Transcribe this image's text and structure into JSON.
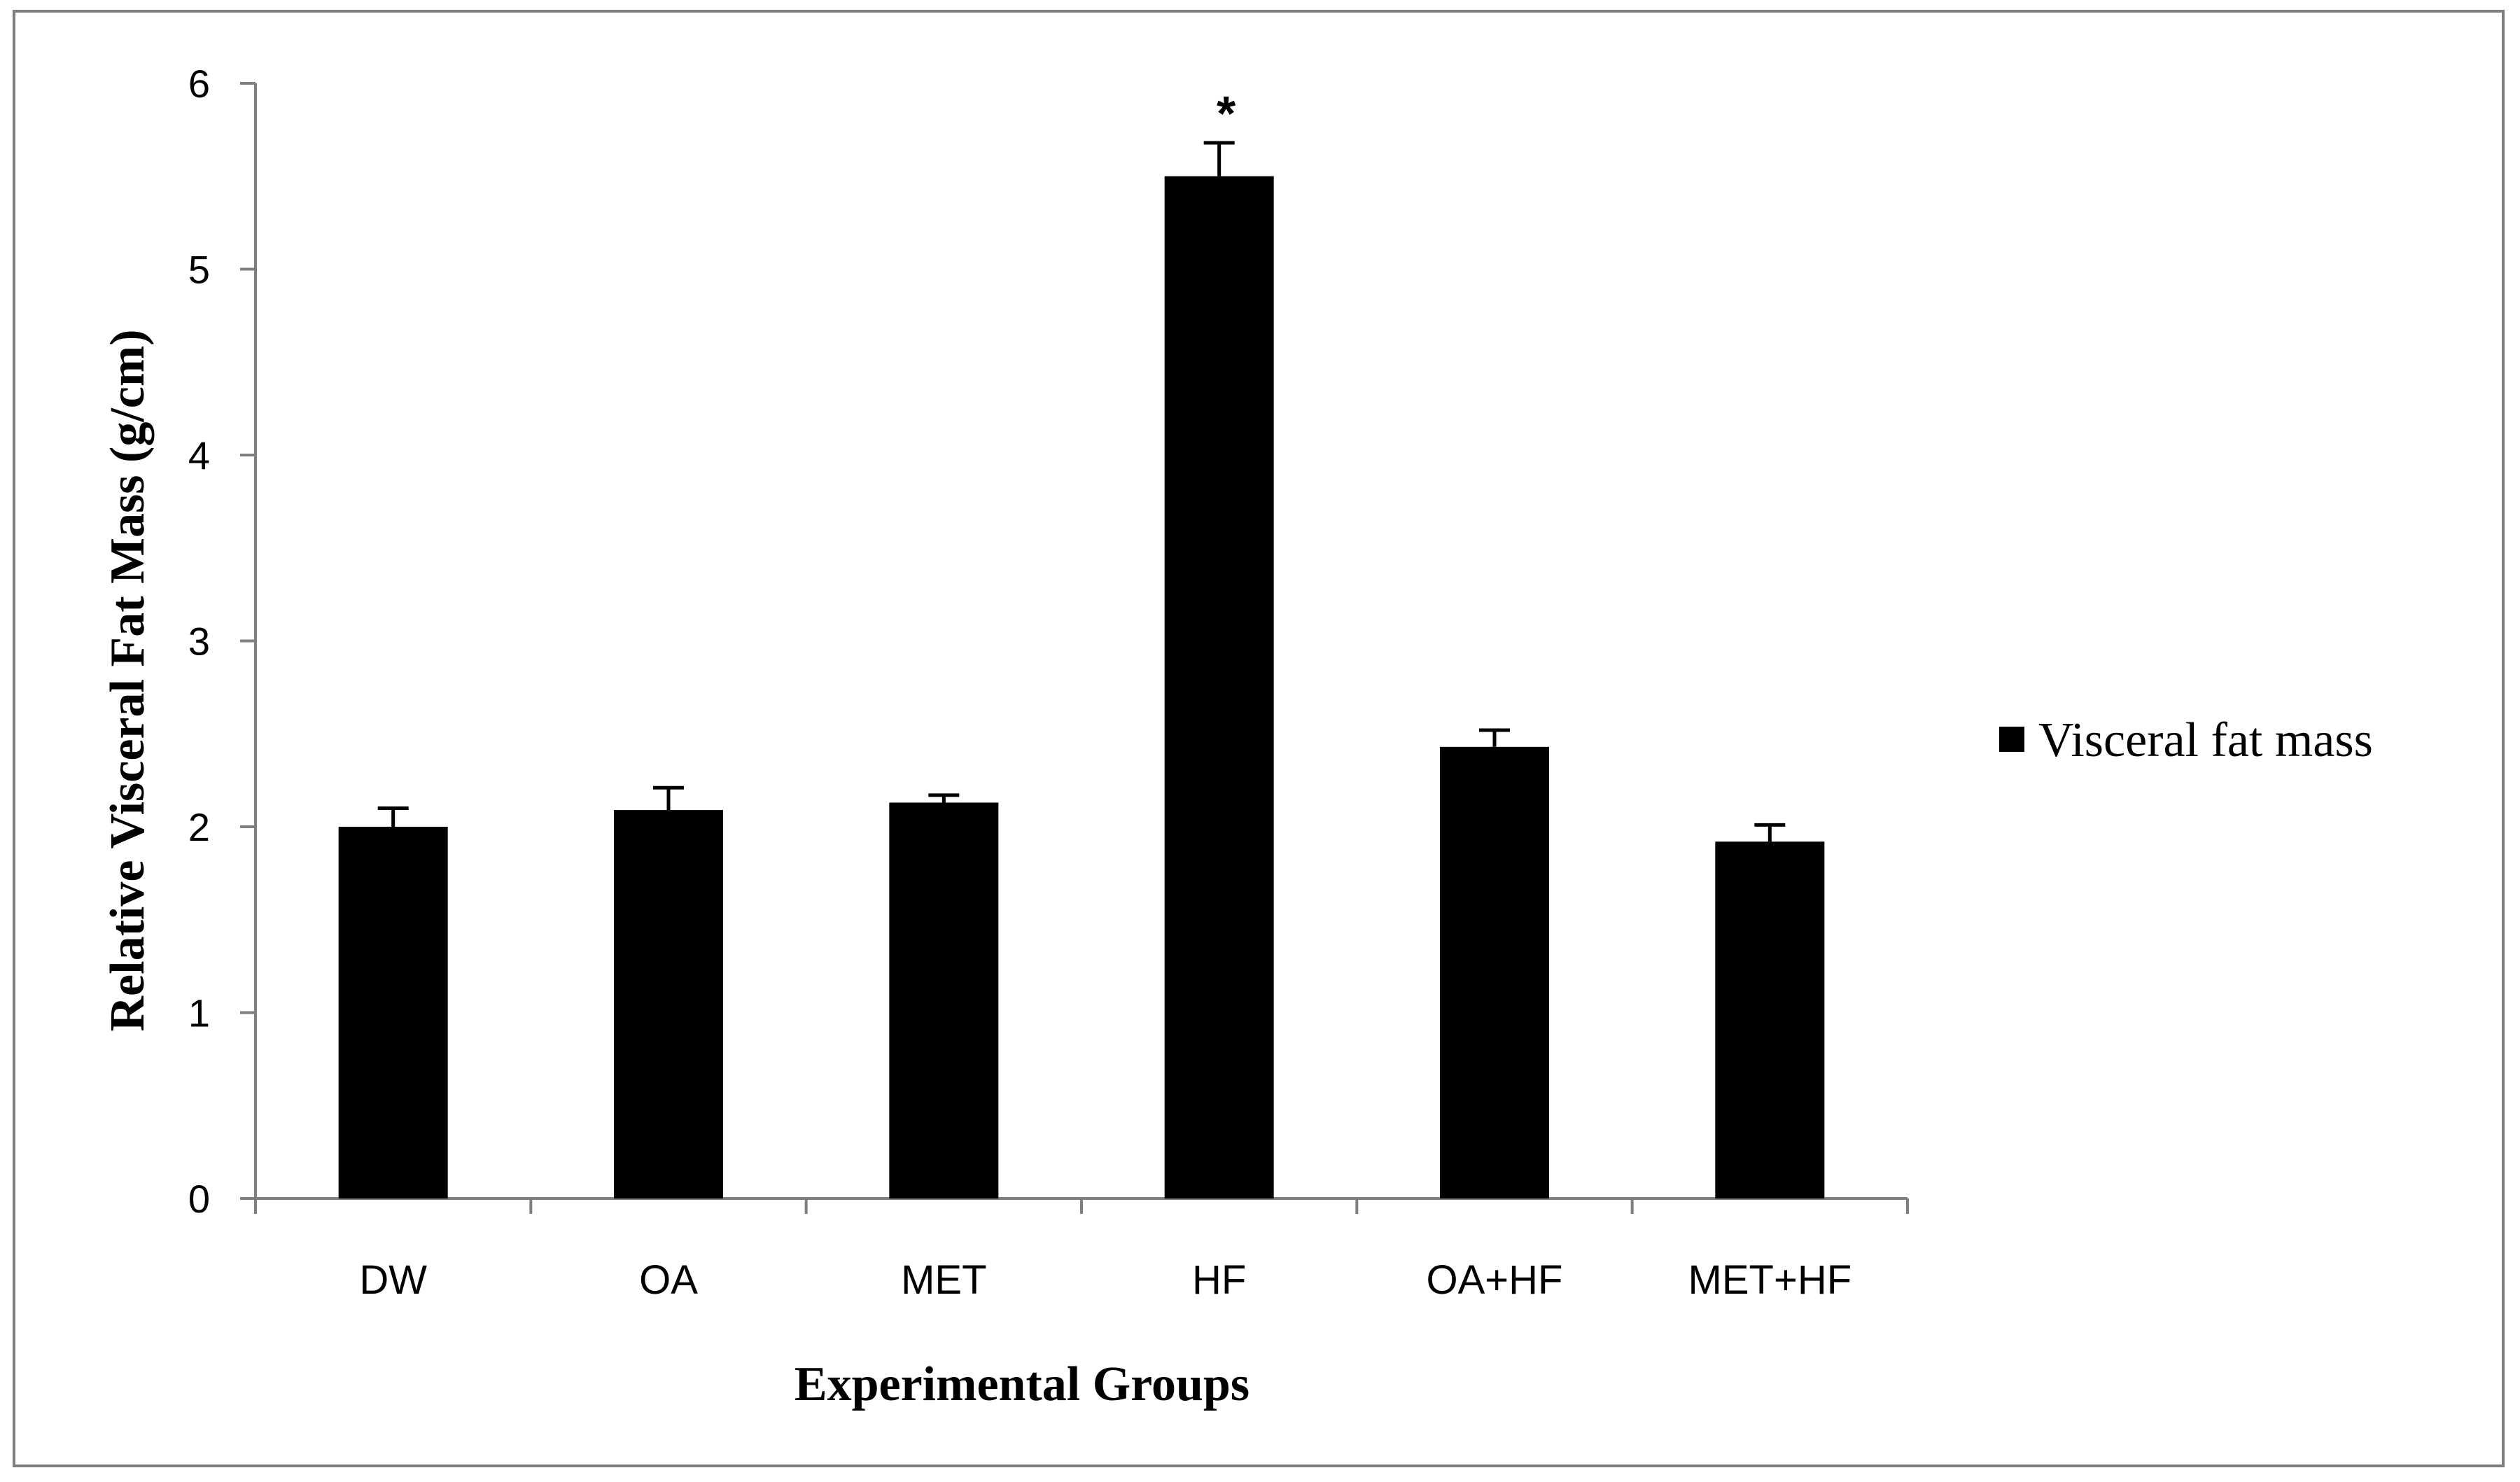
{
  "chart_data": {
    "type": "bar",
    "categories": [
      "DW",
      "OA",
      "MET",
      "HF",
      "OA+HF",
      "MET+HF"
    ],
    "series": [
      {
        "name": "Visceral fat mass",
        "values": [
          2.0,
          2.09,
          2.13,
          5.5,
          2.43,
          1.92
        ],
        "errors": [
          0.1,
          0.12,
          0.04,
          0.18,
          0.09,
          0.09
        ]
      }
    ],
    "xlabel": "Experimental Groups",
    "ylabel": "Relative Visceral Fat Mass (g/cm)",
    "ylim": [
      0,
      6
    ],
    "yticks": [
      0,
      1,
      2,
      3,
      4,
      5,
      6
    ],
    "annotations": [
      {
        "category": "HF",
        "text": "*"
      }
    ],
    "legend_position": "right",
    "grid": false,
    "bar_color": "#000000",
    "axis_color": "#7f7f7f"
  }
}
